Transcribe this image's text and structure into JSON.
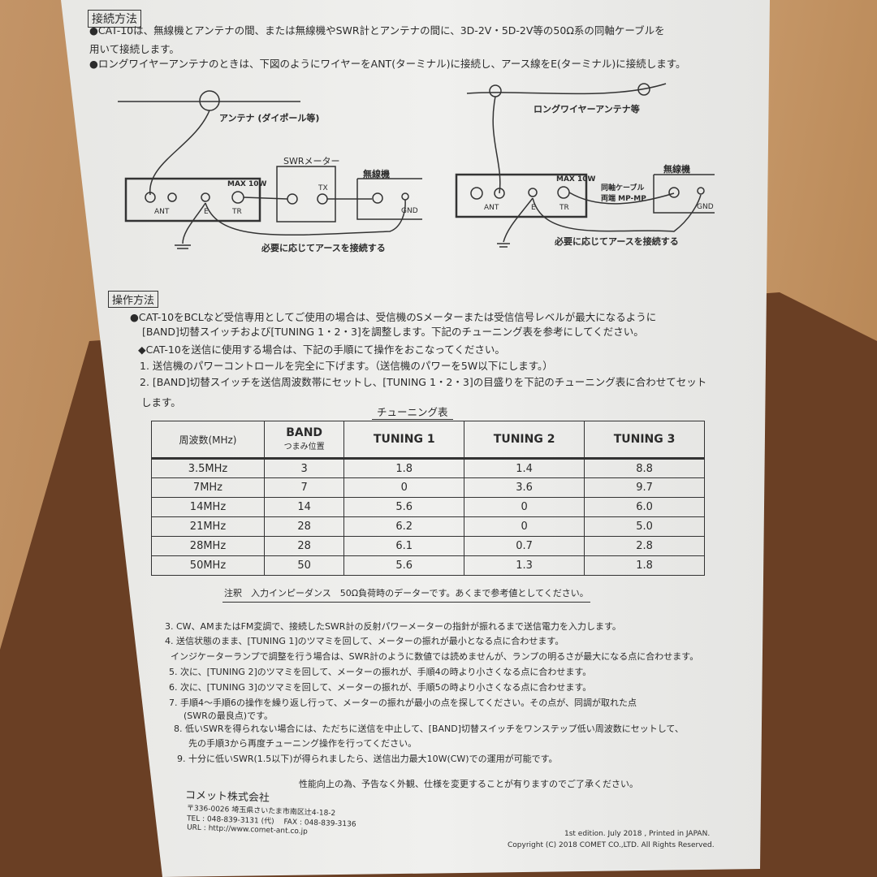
{
  "connection": {
    "heading": "接続方法",
    "line1": "●CAT-10は、無線機とアンテナの間、または無線機やSWR計とアンテナの間に、3D-2V・5D-2V等の50Ω系の同軸ケーブルを",
    "line2": "用いて接続します。",
    "line3": "●ロングワイヤーアンテナのときは、下図のようにワイヤーをANT(ターミナル)に接続し、アース線をE(ターミナル)に接続します。"
  },
  "diagram_left": {
    "antenna": "アンテナ (ダイポール等)",
    "swr": "SWRメーター",
    "radio": "無線機",
    "max": "MAX 10W",
    "ant": "ANT",
    "e": "E",
    "tr": "TR",
    "tx": "TX",
    "gnd": "GND",
    "earth": "必要に応じてアースを接続する"
  },
  "diagram_right": {
    "antenna": "ロングワイヤーアンテナ等",
    "radio": "無線機",
    "max": "MAX 10W",
    "cable1": "同軸ケーブル",
    "cable2": "両端 MP-MP",
    "ant": "ANT",
    "e": "E",
    "tr": "TR",
    "gnd": "GND",
    "earth": "必要に応じてアースを接続する"
  },
  "operation": {
    "heading": "操作方法",
    "l1": "●CAT-10をBCLなど受信専用としてご使用の場合は、受信機のSメーターまたは受信信号レベルが最大になるように",
    "l2": "[BAND]切替スイッチおよび[TUNING 1・2・3]を調整します。下記のチューニング表を参考にしてください。",
    "l3": "◆CAT-10を送信に使用する場合は、下記の手順にて操作をおこなってください。",
    "l4": "1. 送信機のパワーコントロールを完全に下げます。（送信機のパワーを5W以下にします。）",
    "l5": "2. [BAND]切替スイッチを送信周波数帯にセットし、[TUNING 1・2・3]の目盛りを下記のチューニング表に合わせてセット",
    "l6": "します。"
  },
  "table": {
    "title": "チューニング表",
    "headers": [
      "周波数(MHz)",
      "BAND",
      "TUNING 1",
      "TUNING 2",
      "TUNING 3"
    ],
    "band_sub": "つまみ位置",
    "rows": [
      [
        "3.5MHz",
        "3",
        "1.8",
        "1.4",
        "8.8"
      ],
      [
        "7MHz",
        "7",
        "0",
        "3.6",
        "9.7"
      ],
      [
        "14MHz",
        "14",
        "5.6",
        "0",
        "6.0"
      ],
      [
        "21MHz",
        "28",
        "6.2",
        "0",
        "5.0"
      ],
      [
        "28MHz",
        "28",
        "6.1",
        "0.7",
        "2.8"
      ],
      [
        "50MHz",
        "50",
        "5.6",
        "1.3",
        "1.8"
      ]
    ],
    "note": "注釈　入力インピーダンス　50Ω負荷時のデーターです。あくまで参考値としてください。"
  },
  "steps": [
    "3. CW、AMまたはFM変調で、接続したSWR計の反射パワーメーターの指針が振れるまで送信電力を入力します。",
    "4. 送信状態のまま、[TUNING 1]のツマミを回して、メーターの振れが最小となる点に合わせます。",
    "インジケーターランプで調整を行う場合は、SWR計のように数値では読めませんが、ランプの明るさが最大になる点に合わせます。",
    "5. 次に、[TUNING 2]のツマミを回して、メーターの振れが、手順4の時より小さくなる点に合わせます。",
    "6. 次に、[TUNING 3]のツマミを回して、メーターの振れが、手順5の時より小さくなる点に合わせます。",
    "7. 手順4～手順6の操作を繰り返し行って、メーターの振れが最小の点を探してください。その点が、同調が取れた点",
    "(SWRの最良点)です。",
    "8. 低いSWRを得られない場合には、ただちに送信を中止して、[BAND]切替スイッチをワンステップ低い周波数にセットして、",
    "先の手順3から再度チューニング操作を行ってください。",
    "9. 十分に低いSWR(1.5以下)が得られましたら、送信出力最大10W(CW)での運用が可能です。"
  ],
  "footer": {
    "notice": "性能向上の為、予告なく外観、仕様を変更することが有りますのでご了承ください。",
    "company": "コメット株式会社",
    "address": "〒336-0026 埼玉県さいたま市南区辻4-18-2",
    "tel": "TEL : 048-839-3131 (代)　 FAX : 048-839-3136",
    "url": "URL : http://www.comet-ant.co.jp",
    "edition": "1st edition. July 2018 , Printed in JAPAN.",
    "copyright": "Copyright (C) 2018 COMET CO.,LTD. All Rights Reserved."
  }
}
